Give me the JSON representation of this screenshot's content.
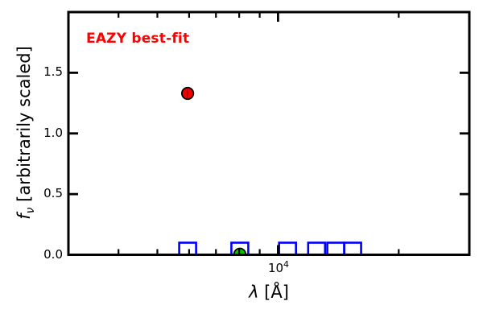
{
  "figure": {
    "background": "#ffffff",
    "frame_color": "#000000"
  },
  "annotation": {
    "label": "EAZY best-fit",
    "color": "#ff0000"
  },
  "axes": {
    "xlabel": {
      "symbol": "λ",
      "rest": " [Å]"
    },
    "ylabel": {
      "symbol": "f",
      "sub": "ν",
      "rest": " [arbitrarily scaled]"
    },
    "x_tick_label": {
      "base": "10",
      "exp": "4"
    },
    "y_tick_labels": [
      "0.0",
      "0.5",
      "1.0",
      "1.5"
    ]
  },
  "chart_data": {
    "type": "scatter",
    "title": "",
    "annotation": "EAZY best-fit",
    "xlabel": "λ [Å]",
    "ylabel": "f_ν [arbitrarily scaled]",
    "x_scale": "log",
    "xlim": [
      3000,
      30000
    ],
    "ylim": [
      0,
      2.0
    ],
    "x_major_ticks": [
      10000
    ],
    "x_minor_ticks": [
      4000,
      5000,
      6000,
      7000,
      8000,
      9000,
      20000
    ],
    "y_major_ticks": [
      0,
      0.5,
      1.0,
      1.5
    ],
    "grid": false,
    "legend": false,
    "series": [
      {
        "name": "observed-flux-red-circle",
        "marker": "circle",
        "color": "#ee0000",
        "edge_color": "#000000",
        "errorbar": true,
        "points": [
          {
            "x": 5950,
            "y": 1.33
          }
        ]
      },
      {
        "name": "observed-flux-green-circle",
        "marker": "circle",
        "color": "#00c800",
        "edge_color": "#000000",
        "errorbar": false,
        "points": [
          {
            "x": 8030,
            "y": 0.005
          }
        ]
      },
      {
        "name": "template-flux-blue-squares",
        "marker": "open-square",
        "color": "none",
        "edge_color": "#0000f0",
        "errorbar": false,
        "points": [
          {
            "x": 5950,
            "y": 0.03
          },
          {
            "x": 8030,
            "y": 0.03
          },
          {
            "x": 10560,
            "y": 0.03
          },
          {
            "x": 12480,
            "y": 0.03
          },
          {
            "x": 13930,
            "y": 0.03
          },
          {
            "x": 15350,
            "y": 0.03
          }
        ]
      }
    ]
  }
}
